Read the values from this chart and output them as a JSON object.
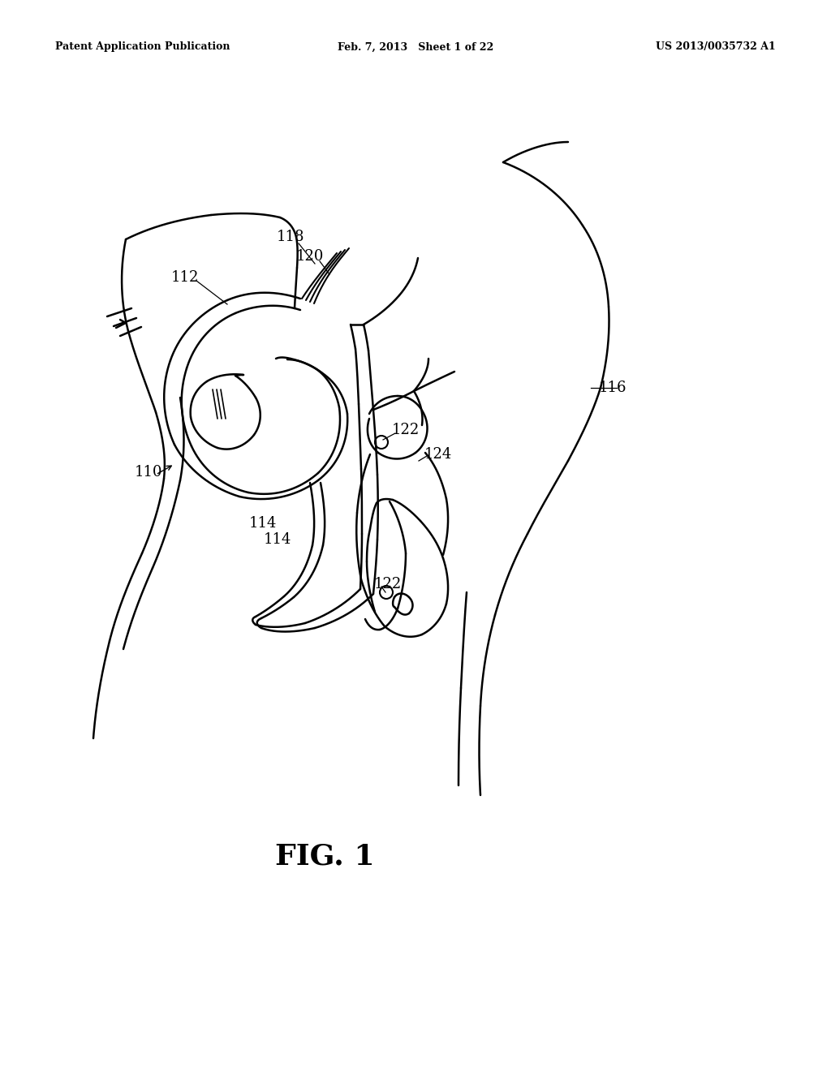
{
  "background_color": "#ffffff",
  "header_left": "Patent Application Publication",
  "header_center": "Feb. 7, 2013   Sheet 1 of 22",
  "header_right": "US 2013/0035732 A1",
  "figure_label": "FIG. 1",
  "line_color": "#000000",
  "line_width": 1.8,
  "label_fontsize": 13,
  "fig_label_fontsize": 26
}
